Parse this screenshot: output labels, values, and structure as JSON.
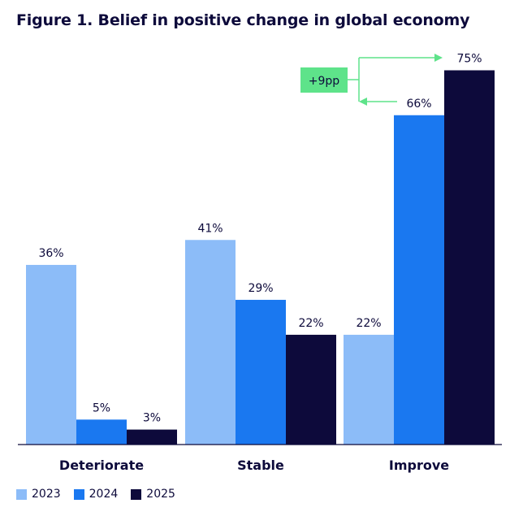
{
  "title": "Figure 1. Belief in positive change in global economy",
  "chart_data": {
    "type": "bar",
    "categories": [
      "Deteriorate",
      "Stable",
      "Improve"
    ],
    "series": [
      {
        "name": "2023",
        "color": "#8cbcf8",
        "values": [
          36,
          41,
          22
        ]
      },
      {
        "name": "2024",
        "color": "#1a78f0",
        "values": [
          5,
          29,
          66
        ]
      },
      {
        "name": "2025",
        "color": "#0d0a3b",
        "values": [
          3,
          22,
          75
        ]
      }
    ],
    "value_suffix": "%",
    "ylim": [
      0,
      75
    ],
    "grid": false,
    "legend_position": "bottom-left",
    "annotation": {
      "text": "+9pp",
      "category": "Improve",
      "from_series": "2024",
      "to_series": "2025",
      "color": "#5ee38a"
    }
  }
}
